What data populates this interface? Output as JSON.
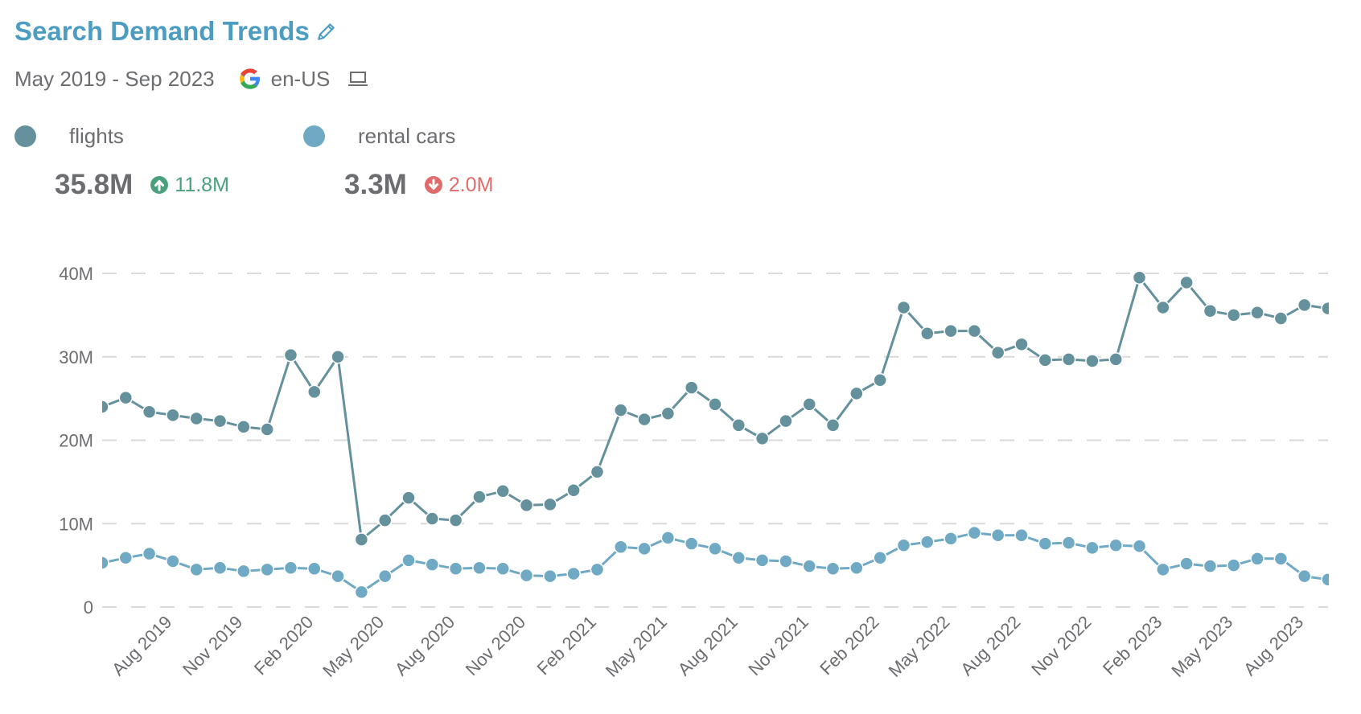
{
  "header": {
    "title": "Search Demand Trends",
    "title_icon": "pencil-icon",
    "date_range": "May 2019 - Sep 2023",
    "engine_icon": "google-icon",
    "locale": "en-US",
    "device_icon": "laptop-icon"
  },
  "colors": {
    "title": "#4d9dc2",
    "flights": "#64919c",
    "rental_cars": "#6fa9c4",
    "up": "#4aa07c",
    "down": "#e06b6b",
    "grid": "#d9d9d9",
    "text": "#6b6d70"
  },
  "legend": [
    {
      "name": "flights",
      "value": "35.8M",
      "change": "11.8M",
      "direction": "up",
      "change_icon": "arrow-up-circle-icon"
    },
    {
      "name": "rental cars",
      "value": "3.3M",
      "change": "2.0M",
      "direction": "down",
      "change_icon": "arrow-down-circle-icon"
    }
  ],
  "chart_data": {
    "type": "line",
    "title": "",
    "xlabel": "",
    "ylabel": "",
    "ylim": [
      0,
      40
    ],
    "y_unit": "M",
    "yticks": [
      0,
      10,
      20,
      30,
      40
    ],
    "ytick_labels": [
      "0",
      "10M",
      "20M",
      "30M",
      "40M"
    ],
    "grid": true,
    "x": [
      "May 2019",
      "Jun 2019",
      "Jul 2019",
      "Aug 2019",
      "Sep 2019",
      "Oct 2019",
      "Nov 2019",
      "Dec 2019",
      "Jan 2020",
      "Feb 2020",
      "Mar 2020",
      "Apr 2020",
      "May 2020",
      "Jun 2020",
      "Jul 2020",
      "Aug 2020",
      "Sep 2020",
      "Oct 2020",
      "Nov 2020",
      "Dec 2020",
      "Jan 2021",
      "Feb 2021",
      "Mar 2021",
      "Apr 2021",
      "May 2021",
      "Jun 2021",
      "Jul 2021",
      "Aug 2021",
      "Sep 2021",
      "Oct 2021",
      "Nov 2021",
      "Dec 2021",
      "Jan 2022",
      "Feb 2022",
      "Mar 2022",
      "Apr 2022",
      "May 2022",
      "Jun 2022",
      "Jul 2022",
      "Aug 2022",
      "Sep 2022",
      "Oct 2022",
      "Nov 2022",
      "Dec 2022",
      "Jan 2023",
      "Feb 2023",
      "Mar 2023",
      "Apr 2023",
      "May 2023",
      "Jun 2023",
      "Jul 2023",
      "Aug 2023",
      "Sep 2023"
    ],
    "xtick_labels": [
      "Aug 2019",
      "Nov 2019",
      "Feb 2020",
      "May 2020",
      "Aug 2020",
      "Nov 2020",
      "Feb 2021",
      "May 2021",
      "Aug 2021",
      "Nov 2021",
      "Feb 2022",
      "May 2022",
      "Aug 2022",
      "Nov 2022",
      "Feb 2023",
      "May 2023",
      "Aug 2023"
    ],
    "series": [
      {
        "name": "flights",
        "values": [
          24.0,
          25.1,
          23.4,
          23.0,
          22.6,
          22.3,
          21.6,
          21.3,
          30.2,
          25.8,
          30.0,
          8.1,
          10.4,
          13.1,
          10.6,
          10.4,
          13.2,
          13.9,
          12.2,
          12.3,
          14.0,
          16.2,
          23.6,
          22.5,
          23.2,
          26.3,
          24.3,
          21.8,
          20.2,
          22.3,
          24.3,
          21.8,
          25.6,
          27.2,
          35.9,
          32.8,
          33.1,
          33.1,
          30.5,
          31.5,
          29.6,
          29.7,
          29.5,
          29.7,
          39.5,
          35.9,
          38.9,
          35.5,
          35.0,
          35.3,
          34.6,
          36.2,
          35.8
        ]
      },
      {
        "name": "rental cars",
        "values": [
          5.3,
          5.9,
          6.4,
          5.5,
          4.5,
          4.7,
          4.3,
          4.5,
          4.7,
          4.6,
          3.7,
          1.8,
          3.7,
          5.6,
          5.1,
          4.6,
          4.7,
          4.6,
          3.8,
          3.7,
          4.0,
          4.5,
          7.2,
          7.0,
          8.3,
          7.6,
          7.0,
          5.9,
          5.6,
          5.5,
          4.9,
          4.6,
          4.7,
          5.9,
          7.4,
          7.8,
          8.2,
          8.9,
          8.6,
          8.6,
          7.6,
          7.7,
          7.1,
          7.4,
          7.3,
          4.5,
          5.2,
          4.9,
          5.0,
          5.8,
          5.8,
          3.7,
          3.3
        ]
      }
    ]
  }
}
